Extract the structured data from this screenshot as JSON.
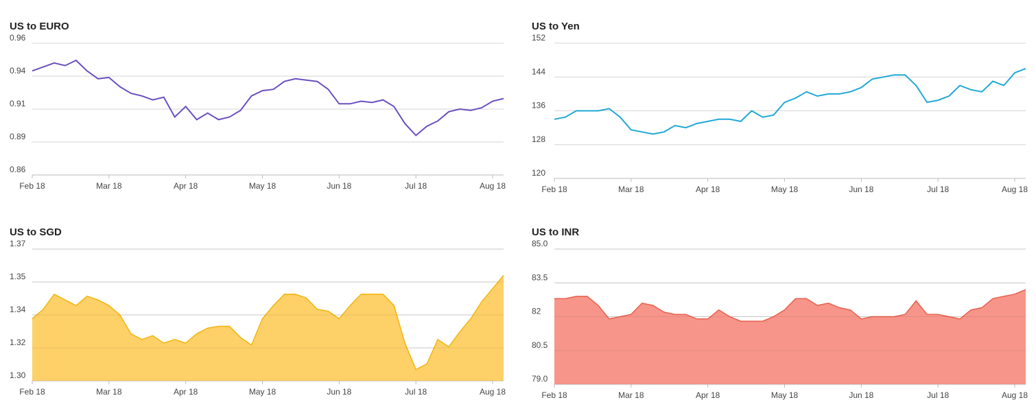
{
  "chart_data": [
    {
      "type": "line",
      "title": "US to EURO",
      "color": "#6a4fbf",
      "categories": [
        "Feb 18",
        null,
        null,
        null,
        null,
        null,
        null,
        "Mar 18",
        null,
        null,
        null,
        null,
        null,
        null,
        "Apr 18",
        null,
        null,
        null,
        null,
        null,
        null,
        "May 18",
        null,
        null,
        null,
        null,
        null,
        null,
        "Jun 18",
        null,
        null,
        null,
        null,
        null,
        null,
        "Jul 18",
        null,
        null,
        null,
        null,
        null,
        null,
        "Aug 18",
        null
      ],
      "values": [
        0.939,
        0.942,
        0.945,
        0.943,
        0.947,
        0.939,
        0.933,
        0.934,
        0.927,
        0.922,
        0.92,
        0.917,
        0.919,
        0.904,
        0.912,
        0.902,
        0.907,
        0.902,
        0.904,
        0.909,
        0.92,
        0.924,
        0.925,
        0.931,
        0.933,
        0.932,
        0.931,
        0.925,
        0.914,
        0.914,
        0.916,
        0.915,
        0.917,
        0.912,
        0.899,
        0.89,
        0.897,
        0.901,
        0.908,
        0.91,
        0.909,
        0.911,
        0.916,
        0.918
      ],
      "ylim": [
        0.86,
        0.96
      ],
      "yticks": [
        0.86,
        {
          "value": 0.885,
          "label": "0.89"
        },
        0.91,
        {
          "value": 0.935,
          "label": "0.94"
        },
        0.96
      ],
      "grid": true
    },
    {
      "type": "line",
      "title": "US to Yen",
      "color": "#1fa8d6",
      "categories": [
        "Feb 18",
        null,
        null,
        null,
        null,
        null,
        null,
        "Mar 18",
        null,
        null,
        null,
        null,
        null,
        null,
        "Apr 18",
        null,
        null,
        null,
        null,
        null,
        null,
        "May 18",
        null,
        null,
        null,
        null,
        null,
        null,
        "Jun 18",
        null,
        null,
        null,
        null,
        null,
        null,
        "Jul 18",
        null,
        null,
        null,
        null,
        null,
        null,
        "Aug 18",
        null
      ],
      "values": [
        134,
        134.5,
        136,
        136,
        136,
        136.5,
        134.5,
        131.5,
        131,
        130.5,
        131,
        132.5,
        132,
        133,
        133.5,
        134,
        134,
        133.5,
        136,
        134.5,
        135,
        138,
        139,
        140.5,
        139.5,
        140,
        140,
        140.5,
        141.5,
        143.5,
        144,
        144.5,
        144.5,
        142,
        138,
        138.5,
        139.5,
        142,
        141,
        140.5,
        143,
        142,
        145,
        146
      ],
      "ylim": [
        120,
        152
      ],
      "yticks": [
        120,
        128,
        136,
        144,
        152
      ],
      "grid": true
    },
    {
      "type": "area",
      "title": "US to SGD",
      "color": "#f2b50f",
      "fill": "#fdd068",
      "categories": [
        "Feb 18",
        null,
        null,
        null,
        null,
        null,
        null,
        "Mar 18",
        null,
        null,
        null,
        null,
        null,
        null,
        "Apr 18",
        null,
        null,
        null,
        null,
        null,
        null,
        "May 18",
        null,
        null,
        null,
        null,
        null,
        null,
        "Jun 18",
        null,
        null,
        null,
        null,
        null,
        null,
        "Jul 18",
        null,
        null,
        null,
        null,
        null,
        null,
        "Aug 18",
        null
      ],
      "values": [
        1.333,
        1.338,
        1.346,
        1.343,
        1.34,
        1.345,
        1.343,
        1.34,
        1.335,
        1.325,
        1.322,
        1.324,
        1.32,
        1.322,
        1.32,
        1.325,
        1.328,
        1.329,
        1.329,
        1.323,
        1.319,
        1.333,
        1.34,
        1.346,
        1.346,
        1.344,
        1.338,
        1.337,
        1.333,
        1.34,
        1.346,
        1.346,
        1.346,
        1.34,
        1.32,
        1.306,
        1.309,
        1.322,
        1.318,
        1.326,
        1.333,
        1.342,
        1.349,
        1.356
      ],
      "ylim": [
        1.3,
        1.37
      ],
      "yticks": [
        {
          "value": 1.3,
          "label": "1.30"
        },
        {
          "value": 1.3175,
          "label": "1.32"
        },
        {
          "value": 1.335,
          "label": "1.34"
        },
        {
          "value": 1.3525,
          "label": "1.35"
        },
        1.37
      ],
      "grid": true
    },
    {
      "type": "area",
      "title": "US to INR",
      "color": "#e8604c",
      "fill": "#f7958a",
      "categories": [
        "Feb 18",
        null,
        null,
        null,
        null,
        null,
        null,
        "Mar 18",
        null,
        null,
        null,
        null,
        null,
        null,
        "Apr 18",
        null,
        null,
        null,
        null,
        null,
        null,
        "May 18",
        null,
        null,
        null,
        null,
        null,
        null,
        "Jun 18",
        null,
        null,
        null,
        null,
        null,
        null,
        "Jul 18",
        null,
        null,
        null,
        null,
        null,
        null,
        "Aug 18",
        null
      ],
      "values": [
        82.8,
        82.8,
        82.9,
        82.9,
        82.5,
        81.9,
        82,
        82.1,
        82.6,
        82.5,
        82.2,
        82.1,
        82.1,
        81.9,
        81.9,
        82.3,
        82,
        81.8,
        81.8,
        81.8,
        82,
        82.3,
        82.8,
        82.8,
        82.5,
        82.6,
        82.4,
        82.3,
        81.9,
        82,
        82,
        82,
        82.1,
        82.7,
        82.1,
        82.1,
        82,
        81.9,
        82.3,
        82.4,
        82.8,
        82.9,
        83,
        83.2
      ],
      "ylim": [
        79,
        85
      ],
      "yticks": [
        {
          "value": 79,
          "label": "79.0"
        },
        80.5,
        82,
        83.5,
        {
          "value": 85,
          "label": "85.0"
        }
      ],
      "grid": true
    }
  ]
}
